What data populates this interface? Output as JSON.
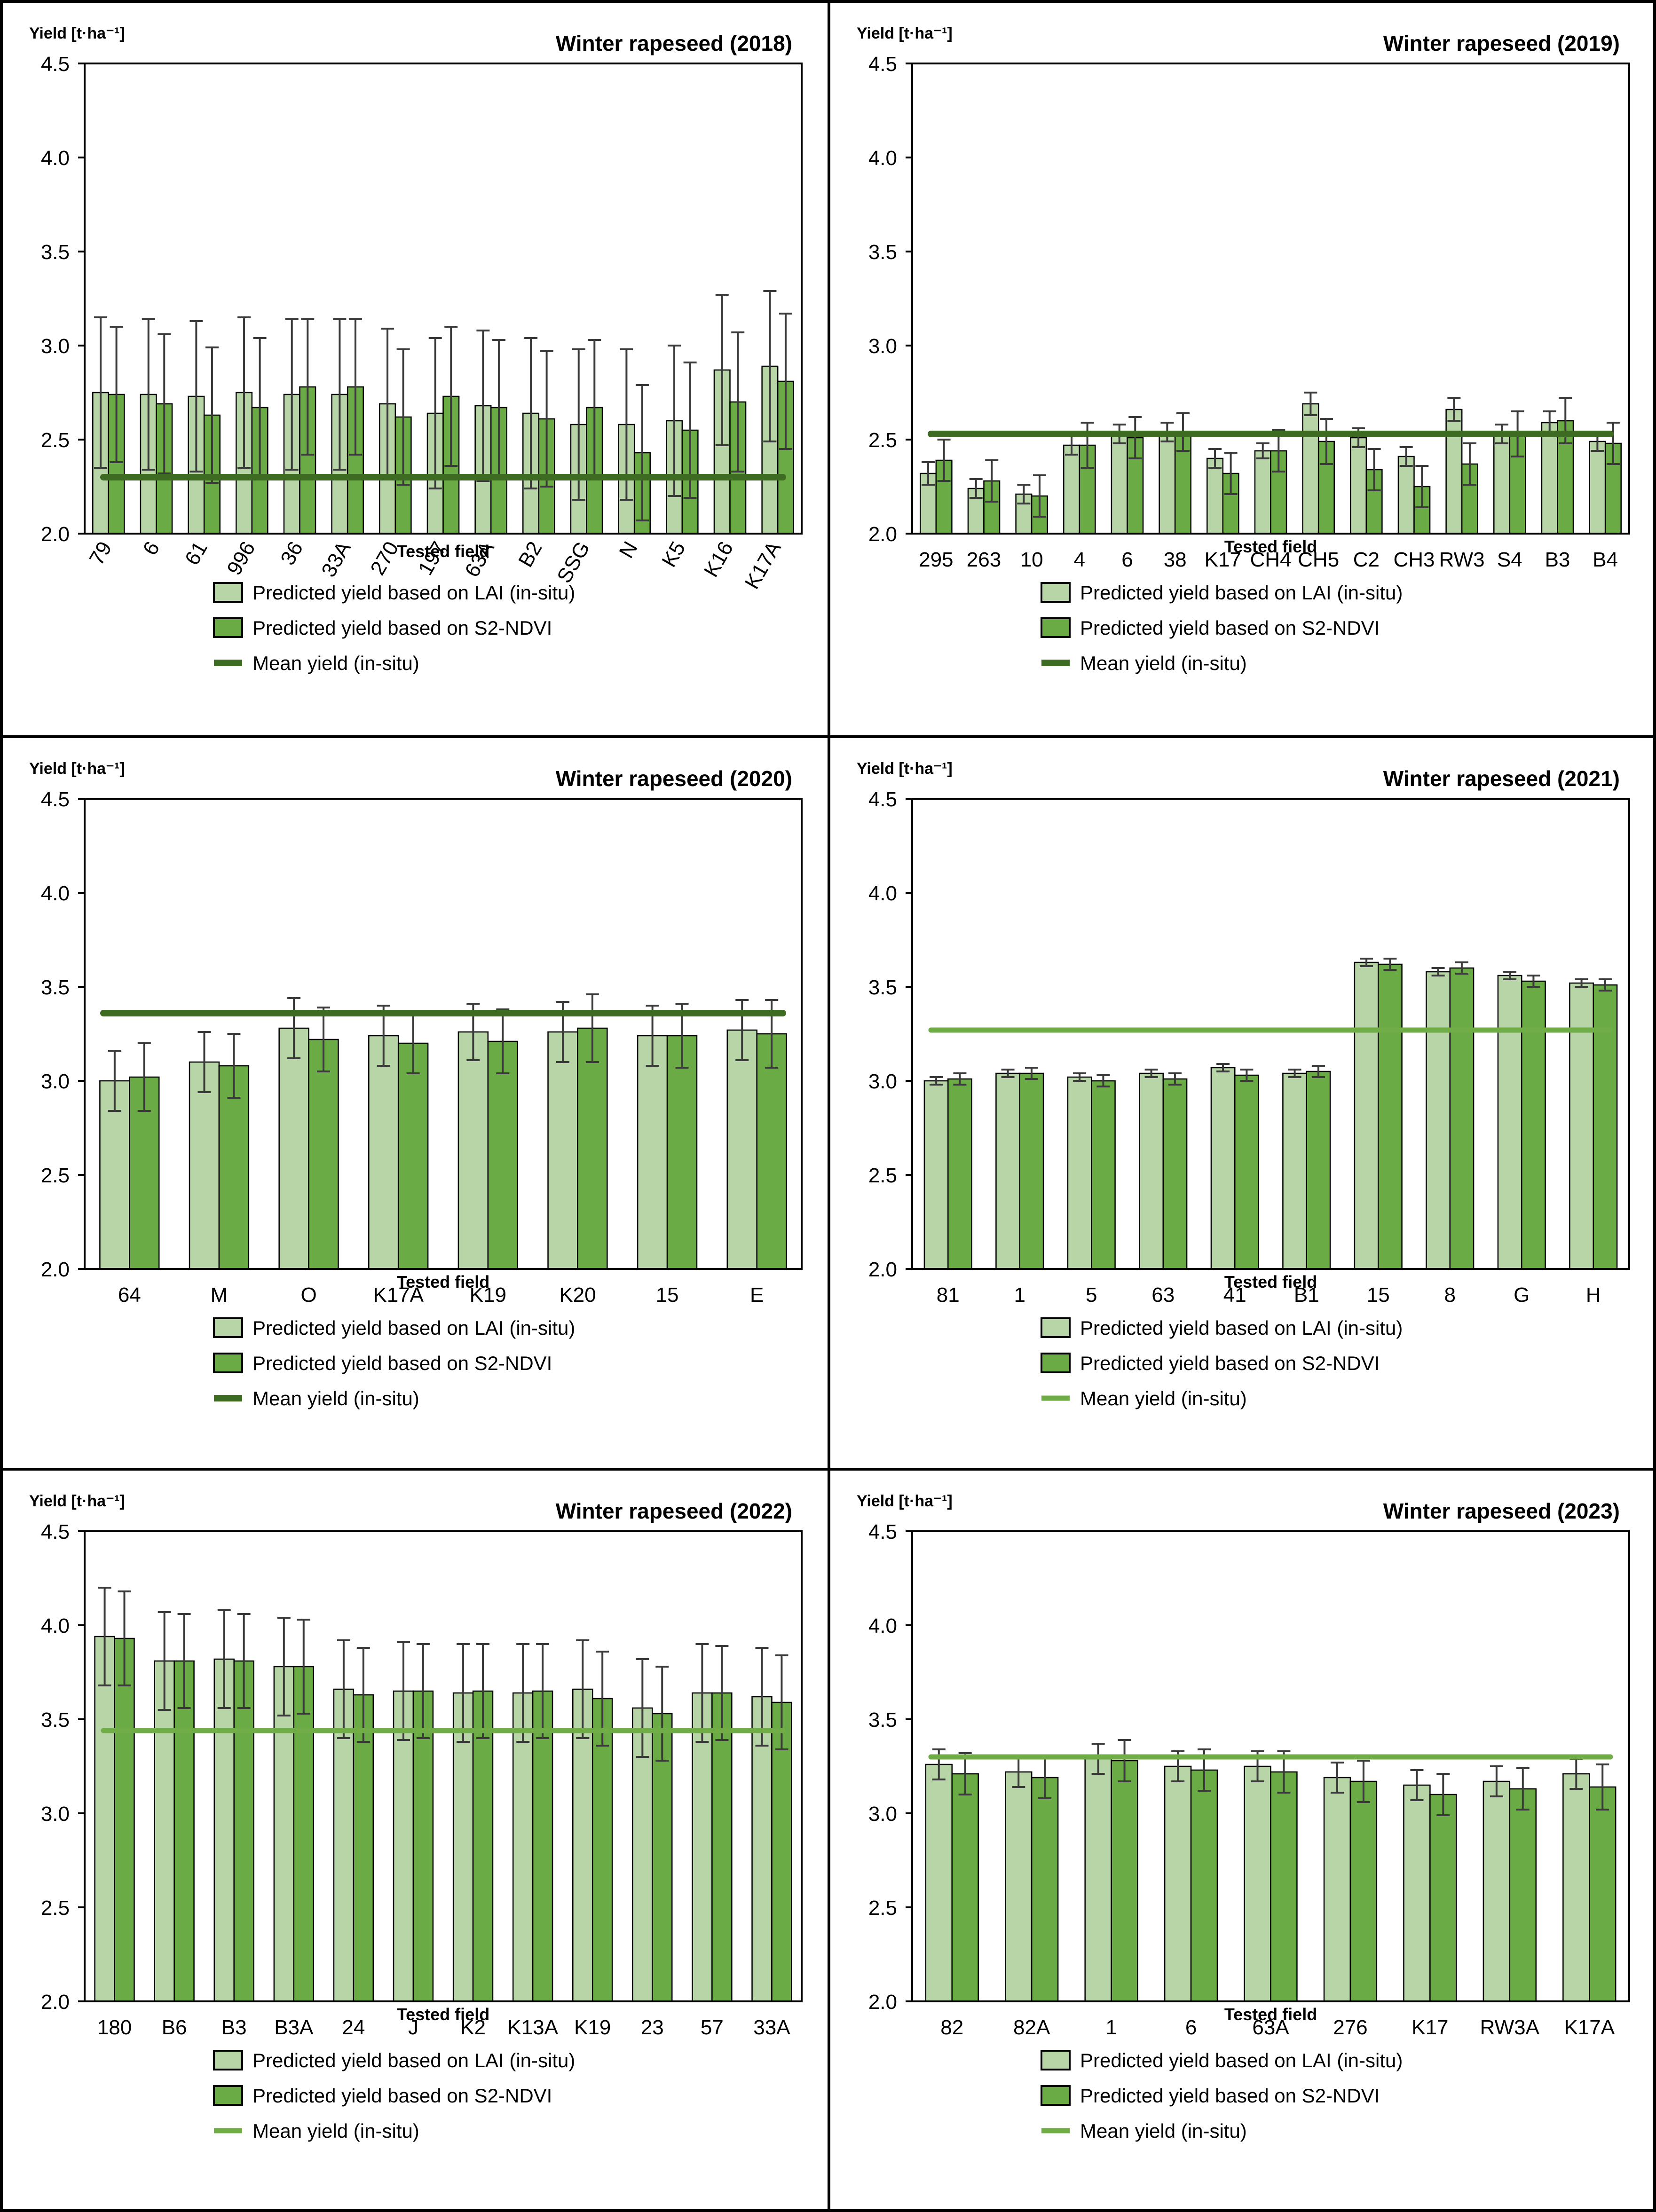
{
  "common": {
    "ylabel": "Yield [t·ha⁻¹]",
    "xlabel": "Tested field",
    "ylim": [
      2.0,
      4.5
    ],
    "yticks": [
      "2.0",
      "2.5",
      "3.0",
      "3.5",
      "4.0",
      "4.5"
    ],
    "legend": [
      "Predicted yield based on LAI (in-situ)",
      "Predicted yield based on S2-NDVI",
      "Mean yield (in-situ)"
    ]
  },
  "colors": {
    "lai": "#b8d5a8",
    "ndvi": "#6aab45",
    "mean_dark": "#3d6b22",
    "mean_light": "#70ad47",
    "edge": "#000000",
    "error": "#3a3a3a"
  },
  "chart_data": [
    {
      "type": "bar",
      "title": "Winter rapeseed (2018)",
      "categories": [
        "79",
        "6",
        "61",
        "996",
        "36",
        "33A",
        "270",
        "197",
        "63A",
        "B2",
        "SSG",
        "N",
        "K5",
        "K16",
        "K17A"
      ],
      "series": [
        {
          "name": "Predicted yield based on LAI (in-situ)",
          "values": [
            2.75,
            2.74,
            2.73,
            2.75,
            2.74,
            2.74,
            2.69,
            2.64,
            2.68,
            2.64,
            2.58,
            2.58,
            2.6,
            2.87,
            2.89
          ],
          "error": [
            0.4,
            0.4,
            0.4,
            0.4,
            0.4,
            0.4,
            0.4,
            0.4,
            0.4,
            0.4,
            0.4,
            0.4,
            0.4,
            0.4,
            0.4
          ]
        },
        {
          "name": "Predicted yield based on S2-NDVI",
          "values": [
            2.74,
            2.69,
            2.63,
            2.67,
            2.78,
            2.78,
            2.62,
            2.73,
            2.67,
            2.61,
            2.67,
            2.43,
            2.55,
            2.7,
            2.81
          ],
          "error": [
            0.36,
            0.37,
            0.36,
            0.37,
            0.36,
            0.36,
            0.36,
            0.37,
            0.36,
            0.36,
            0.36,
            0.36,
            0.36,
            0.37,
            0.36
          ]
        }
      ],
      "mean_yield": 2.3,
      "mean_style": "dark",
      "xlabel": "Tested field",
      "ylabel": "Yield [t·ha⁻¹]",
      "ylim": [
        2.0,
        4.5
      ],
      "rotate_ticks": true
    },
    {
      "type": "bar",
      "title": "Winter rapeseed (2019)",
      "categories": [
        "295",
        "263",
        "10",
        "4",
        "6",
        "38",
        "K17",
        "CH4",
        "CH5",
        "C2",
        "CH3",
        "RW3",
        "S4",
        "B3",
        "B4"
      ],
      "series": [
        {
          "name": "Predicted yield based on LAI (in-situ)",
          "values": [
            2.32,
            2.24,
            2.21,
            2.47,
            2.53,
            2.54,
            2.4,
            2.44,
            2.69,
            2.51,
            2.41,
            2.66,
            2.53,
            2.59,
            2.49
          ],
          "error": [
            0.06,
            0.05,
            0.05,
            0.05,
            0.05,
            0.05,
            0.05,
            0.04,
            0.06,
            0.05,
            0.05,
            0.06,
            0.05,
            0.06,
            0.05
          ]
        },
        {
          "name": "Predicted yield based on S2-NDVI",
          "values": [
            2.39,
            2.28,
            2.2,
            2.47,
            2.51,
            2.54,
            2.32,
            2.44,
            2.49,
            2.34,
            2.25,
            2.37,
            2.53,
            2.6,
            2.48
          ],
          "error": [
            0.11,
            0.11,
            0.11,
            0.12,
            0.11,
            0.1,
            0.11,
            0.11,
            0.12,
            0.11,
            0.11,
            0.11,
            0.12,
            0.12,
            0.11
          ]
        }
      ],
      "mean_yield": 2.53,
      "mean_style": "dark",
      "xlabel": "Tested field",
      "ylabel": "Yield [t·ha⁻¹]",
      "ylim": [
        2.0,
        4.5
      ],
      "rotate_ticks": false
    },
    {
      "type": "bar",
      "title": "Winter rapeseed (2020)",
      "categories": [
        "64",
        "M",
        "O",
        "K17A",
        "K19",
        "K20",
        "15",
        "E"
      ],
      "series": [
        {
          "name": "Predicted yield based on LAI (in-situ)",
          "values": [
            3.0,
            3.1,
            3.28,
            3.24,
            3.26,
            3.26,
            3.24,
            3.27
          ],
          "error": [
            0.16,
            0.16,
            0.16,
            0.16,
            0.15,
            0.16,
            0.16,
            0.16
          ]
        },
        {
          "name": "Predicted yield based on S2-NDVI",
          "values": [
            3.02,
            3.08,
            3.22,
            3.2,
            3.21,
            3.28,
            3.24,
            3.25
          ],
          "error": [
            0.18,
            0.17,
            0.17,
            0.16,
            0.17,
            0.18,
            0.17,
            0.18
          ]
        }
      ],
      "mean_yield": 3.36,
      "mean_style": "dark",
      "xlabel": "Tested field",
      "ylabel": "Yield [t·ha⁻¹]",
      "ylim": [
        2.0,
        4.5
      ],
      "rotate_ticks": false
    },
    {
      "type": "bar",
      "title": "Winter rapeseed (2021)",
      "categories": [
        "81",
        "1",
        "5",
        "63",
        "41",
        "B1",
        "15",
        "8",
        "G",
        "H"
      ],
      "series": [
        {
          "name": "Predicted yield based on LAI (in-situ)",
          "values": [
            3.0,
            3.04,
            3.02,
            3.04,
            3.07,
            3.04,
            3.63,
            3.58,
            3.56,
            3.52
          ],
          "error": [
            0.02,
            0.02,
            0.02,
            0.02,
            0.02,
            0.02,
            0.02,
            0.02,
            0.02,
            0.02
          ]
        },
        {
          "name": "Predicted yield based on S2-NDVI",
          "values": [
            3.01,
            3.04,
            3.0,
            3.01,
            3.03,
            3.05,
            3.62,
            3.6,
            3.53,
            3.51
          ],
          "error": [
            0.03,
            0.03,
            0.03,
            0.03,
            0.03,
            0.03,
            0.03,
            0.03,
            0.03,
            0.03
          ]
        }
      ],
      "mean_yield": 3.27,
      "mean_style": "light",
      "xlabel": "Tested field",
      "ylabel": "Yield [t·ha⁻¹]",
      "ylim": [
        2.0,
        4.5
      ],
      "rotate_ticks": false
    },
    {
      "type": "bar",
      "title": "Winter rapeseed (2022)",
      "categories": [
        "180",
        "B6",
        "B3",
        "B3A",
        "24",
        "J",
        "K2",
        "K13A",
        "K19",
        "23",
        "57",
        "33A"
      ],
      "series": [
        {
          "name": "Predicted yield based on LAI (in-situ)",
          "values": [
            3.94,
            3.81,
            3.82,
            3.78,
            3.66,
            3.65,
            3.64,
            3.64,
            3.66,
            3.56,
            3.64,
            3.62
          ],
          "error": [
            0.26,
            0.26,
            0.26,
            0.26,
            0.26,
            0.26,
            0.26,
            0.26,
            0.26,
            0.26,
            0.26,
            0.26
          ]
        },
        {
          "name": "Predicted yield based on S2-NDVI",
          "values": [
            3.93,
            3.81,
            3.81,
            3.78,
            3.63,
            3.65,
            3.65,
            3.65,
            3.61,
            3.53,
            3.64,
            3.59
          ],
          "error": [
            0.25,
            0.25,
            0.25,
            0.25,
            0.25,
            0.25,
            0.25,
            0.25,
            0.25,
            0.25,
            0.25,
            0.25
          ]
        }
      ],
      "mean_yield": 3.44,
      "mean_style": "light",
      "xlabel": "Tested field",
      "ylabel": "Yield [t·ha⁻¹]",
      "ylim": [
        2.0,
        4.5
      ],
      "rotate_ticks": false
    },
    {
      "type": "bar",
      "title": "Winter rapeseed (2023)",
      "categories": [
        "82",
        "82A",
        "1",
        "6",
        "63A",
        "276",
        "K17",
        "RW3A",
        "K17A"
      ],
      "series": [
        {
          "name": "Predicted yield based on LAI (in-situ)",
          "values": [
            3.26,
            3.22,
            3.29,
            3.25,
            3.25,
            3.19,
            3.15,
            3.17,
            3.21
          ],
          "error": [
            0.08,
            0.08,
            0.08,
            0.08,
            0.08,
            0.08,
            0.08,
            0.08,
            0.08
          ]
        },
        {
          "name": "Predicted yield based on S2-NDVI",
          "values": [
            3.21,
            3.19,
            3.28,
            3.23,
            3.22,
            3.17,
            3.1,
            3.13,
            3.14
          ],
          "error": [
            0.11,
            0.11,
            0.11,
            0.11,
            0.11,
            0.11,
            0.11,
            0.11,
            0.12
          ]
        }
      ],
      "mean_yield": 3.3,
      "mean_style": "light",
      "xlabel": "Tested field",
      "ylabel": "Yield [t·ha⁻¹]",
      "ylim": [
        2.0,
        4.5
      ],
      "rotate_ticks": false
    }
  ]
}
